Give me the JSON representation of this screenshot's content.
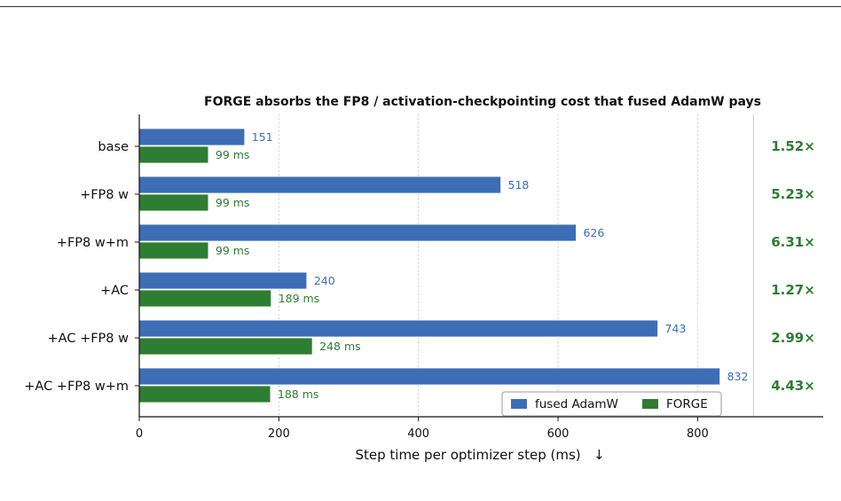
{
  "chart_data": {
    "type": "bar",
    "orientation": "horizontal",
    "title": "FORGE absorbs the FP8 / activation-checkpointing cost that fused AdamW pays",
    "xlabel": "Step time per optimizer step (ms)   ↓",
    "ylabel": "",
    "categories": [
      "base",
      "+FP8 w",
      "+FP8 w+m",
      "+AC",
      "+AC +FP8 w",
      "+AC +FP8 w+m"
    ],
    "series": [
      {
        "name": "fused AdamW",
        "color": "#3d6db5",
        "values": [
          151,
          518,
          626,
          240,
          743,
          832
        ],
        "labels": [
          "151",
          "518",
          "626",
          "240",
          "743",
          "832"
        ]
      },
      {
        "name": "FORGE",
        "color": "#2e7d32",
        "values": [
          99,
          99,
          99,
          189,
          248,
          188
        ],
        "labels": [
          "99 ms",
          "99 ms",
          "99 ms",
          "189 ms",
          "248 ms",
          "188 ms"
        ]
      }
    ],
    "speedups": [
      "1.52×",
      "5.23×",
      "6.31×",
      "1.27×",
      "2.99×",
      "4.43×"
    ],
    "speedup_color": "#2e7d32",
    "xlim": [
      0,
      980
    ],
    "xticks": [
      0,
      200,
      400,
      600,
      800
    ],
    "xtick_labels": [
      "0",
      "200",
      "400",
      "600",
      "800"
    ],
    "grid": "x-dotted",
    "legend_position": "lower-right",
    "separator_x": 880
  }
}
